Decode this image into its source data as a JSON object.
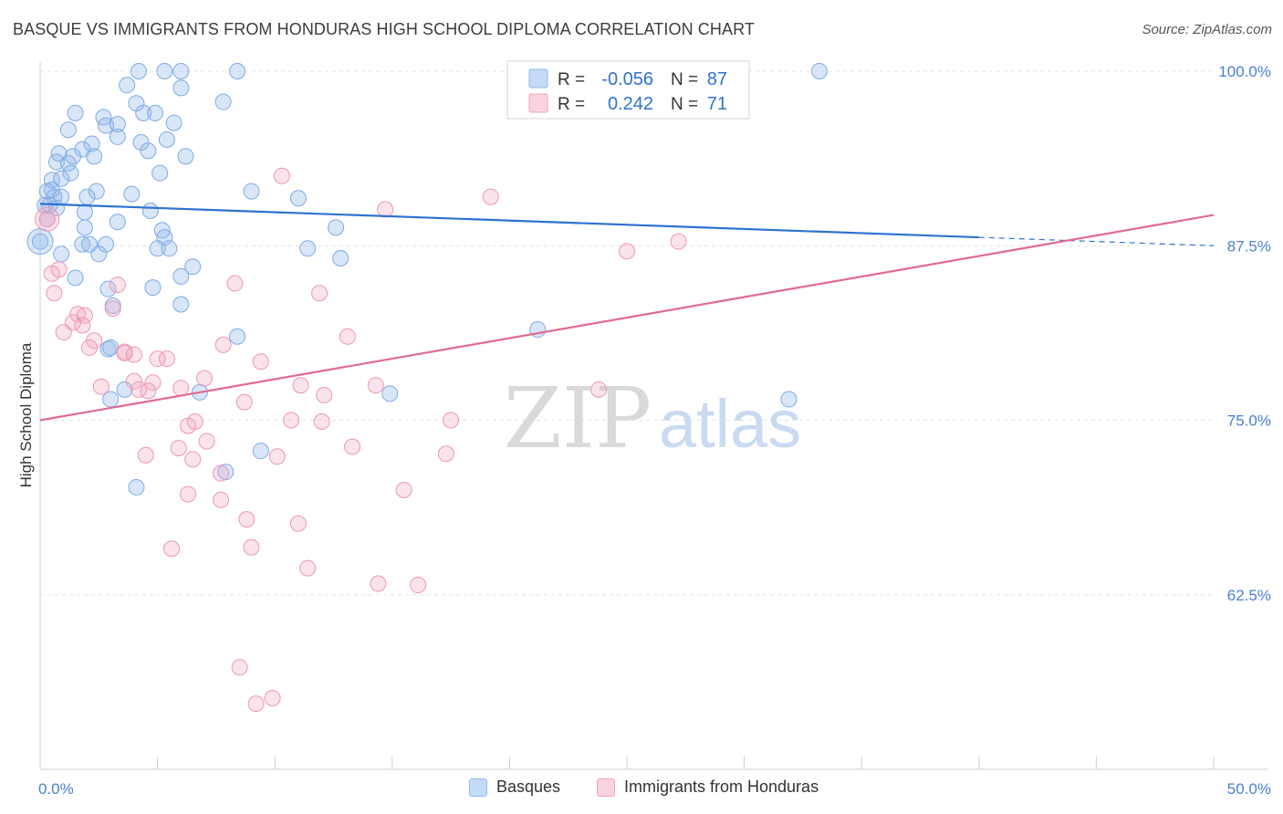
{
  "title": "BASQUE VS IMMIGRANTS FROM HONDURAS HIGH SCHOOL DIPLOMA CORRELATION CHART",
  "source": "Source: ZipAtlas.com",
  "watermark": {
    "part1": "ZIP",
    "part2": "atlas"
  },
  "colors": {
    "blue": "#8fb8ec",
    "blue_line": "#2f72d0",
    "pink": "#f2a3bd",
    "pink_line": "#e26a93",
    "axis_text": "#4a7fd1",
    "grid": "#e3e3e3"
  },
  "stats_box": {
    "rows": [
      {
        "r_label": "R =",
        "r_value": "-0.056",
        "n_label": "N =",
        "n_value": "87"
      },
      {
        "r_label": "R =",
        "r_value": "0.242",
        "n_label": "N =",
        "n_value": "71"
      }
    ]
  },
  "legend": [
    {
      "label": "Basques",
      "color": "#8fb8ec"
    },
    {
      "label": "Immigrants from Honduras",
      "color": "#f2a3bd"
    }
  ],
  "chart_data": {
    "type": "scatter",
    "ylabel": "High School Diploma",
    "xlim": [
      0,
      50
    ],
    "ylim": [
      50,
      100
    ],
    "x_tick_labels": [
      "0.0%",
      "50.0%"
    ],
    "y_ticks": [
      62.5,
      75.0,
      87.5,
      100.0
    ],
    "y_tick_labels": [
      "62.5%",
      "75.0%",
      "87.5%",
      "100.0%"
    ],
    "grid": true,
    "legend_placement": "bottom",
    "series": [
      {
        "name": "Basques",
        "trend": {
          "x0": 0,
          "y0": 90.5,
          "x1": 40,
          "y1": 88.1,
          "dash_to_x": 50,
          "dash_to_y": 87.5
        },
        "points": [
          [
            4.2,
            100
          ],
          [
            5.3,
            100
          ],
          [
            6.0,
            100
          ],
          [
            8.4,
            100
          ],
          [
            23.0,
            100
          ],
          [
            33.2,
            100
          ],
          [
            3.7,
            99
          ],
          [
            6.0,
            98.8
          ],
          [
            4.1,
            97.7
          ],
          [
            7.8,
            97.8
          ],
          [
            1.5,
            97
          ],
          [
            4.4,
            97
          ],
          [
            4.9,
            97
          ],
          [
            2.7,
            96.7
          ],
          [
            5.7,
            96.3
          ],
          [
            2.8,
            96.1
          ],
          [
            3.3,
            96.2
          ],
          [
            1.2,
            95.8
          ],
          [
            5.4,
            95.1
          ],
          [
            3.3,
            95.3
          ],
          [
            4.3,
            94.9
          ],
          [
            2.2,
            94.8
          ],
          [
            1.8,
            94.4
          ],
          [
            0.8,
            94.1
          ],
          [
            4.6,
            94.3
          ],
          [
            2.3,
            93.9
          ],
          [
            1.4,
            93.9
          ],
          [
            6.2,
            93.9
          ],
          [
            0.7,
            93.5
          ],
          [
            1.2,
            93.4
          ],
          [
            5.1,
            92.7
          ],
          [
            1.3,
            92.7
          ],
          [
            0.5,
            92.2
          ],
          [
            0.9,
            92.3
          ],
          [
            0.5,
            91.5
          ],
          [
            0.3,
            91.4
          ],
          [
            2.4,
            91.4
          ],
          [
            3.9,
            91.2
          ],
          [
            9.0,
            91.4
          ],
          [
            11.0,
            90.9
          ],
          [
            0.6,
            91
          ],
          [
            0.9,
            91
          ],
          [
            2.0,
            91
          ],
          [
            0.2,
            90.4
          ],
          [
            0.4,
            90.4
          ],
          [
            0.7,
            90.2
          ],
          [
            4.7,
            90
          ],
          [
            1.9,
            89.9
          ],
          [
            0.3,
            89.4
          ],
          [
            3.3,
            89.2
          ],
          [
            12.6,
            88.8
          ],
          [
            5.2,
            88.6
          ],
          [
            1.9,
            88.8
          ],
          [
            5.3,
            88.1
          ],
          [
            0.0,
            87.8
          ],
          [
            1.8,
            87.6
          ],
          [
            2.1,
            87.6
          ],
          [
            2.8,
            87.6
          ],
          [
            5.0,
            87.3
          ],
          [
            5.5,
            87.3
          ],
          [
            11.4,
            87.3
          ],
          [
            0.9,
            86.9
          ],
          [
            2.5,
            86.9
          ],
          [
            12.8,
            86.6
          ],
          [
            6.5,
            86
          ],
          [
            1.5,
            85.2
          ],
          [
            6.0,
            85.3
          ],
          [
            4.8,
            84.5
          ],
          [
            2.9,
            84.4
          ],
          [
            6.0,
            83.3
          ],
          [
            3.1,
            83.2
          ],
          [
            21.2,
            81.5
          ],
          [
            8.4,
            81
          ],
          [
            2.9,
            80.1
          ],
          [
            3.0,
            80.2
          ],
          [
            3.6,
            77.2
          ],
          [
            6.8,
            77
          ],
          [
            14.9,
            76.9
          ],
          [
            3.0,
            76.5
          ],
          [
            31.9,
            76.5
          ],
          [
            9.4,
            72.8
          ],
          [
            7.9,
            71.3
          ],
          [
            4.1,
            70.2
          ]
        ]
      },
      {
        "name": "Immigrants from Honduras",
        "trend": {
          "x0": 0,
          "y0": 75.0,
          "x1": 50,
          "y1": 89.7
        },
        "points": [
          [
            28.3,
            100
          ],
          [
            27.3,
            100
          ],
          [
            10.3,
            92.5
          ],
          [
            19.2,
            91
          ],
          [
            14.7,
            90.1
          ],
          [
            0.3,
            89.4
          ],
          [
            27.2,
            87.8
          ],
          [
            25.0,
            87.1
          ],
          [
            0.8,
            85.8
          ],
          [
            0.5,
            85.5
          ],
          [
            8.3,
            84.8
          ],
          [
            3.3,
            84.7
          ],
          [
            11.9,
            84.1
          ],
          [
            0.6,
            84.1
          ],
          [
            3.1,
            83
          ],
          [
            1.6,
            82.6
          ],
          [
            1.9,
            82.5
          ],
          [
            1.4,
            82
          ],
          [
            1.8,
            81.8
          ],
          [
            1.0,
            81.3
          ],
          [
            13.1,
            81
          ],
          [
            2.3,
            80.7
          ],
          [
            7.8,
            80.4
          ],
          [
            2.1,
            80.2
          ],
          [
            3.6,
            79.9
          ],
          [
            3.6,
            79.8
          ],
          [
            4.0,
            79.7
          ],
          [
            5.0,
            79.4
          ],
          [
            5.4,
            79.4
          ],
          [
            9.4,
            79.2
          ],
          [
            7.0,
            78
          ],
          [
            4.0,
            77.8
          ],
          [
            4.8,
            77.7
          ],
          [
            2.6,
            77.4
          ],
          [
            4.2,
            77.2
          ],
          [
            6.0,
            77.3
          ],
          [
            4.6,
            77.1
          ],
          [
            11.1,
            77.5
          ],
          [
            14.3,
            77.5
          ],
          [
            23.8,
            77.2
          ],
          [
            12.1,
            76.8
          ],
          [
            8.7,
            76.3
          ],
          [
            10.7,
            75
          ],
          [
            17.5,
            75
          ],
          [
            12.0,
            74.9
          ],
          [
            6.6,
            74.9
          ],
          [
            6.3,
            74.6
          ],
          [
            7.1,
            73.5
          ],
          [
            13.3,
            73.1
          ],
          [
            5.9,
            73
          ],
          [
            17.3,
            72.6
          ],
          [
            4.5,
            72.5
          ],
          [
            10.1,
            72.4
          ],
          [
            6.5,
            72.2
          ],
          [
            7.7,
            71.2
          ],
          [
            15.5,
            70
          ],
          [
            6.3,
            69.7
          ],
          [
            7.7,
            69.3
          ],
          [
            8.8,
            67.9
          ],
          [
            11.0,
            67.6
          ],
          [
            5.6,
            65.8
          ],
          [
            9.0,
            65.9
          ],
          [
            11.4,
            64.4
          ],
          [
            14.4,
            63.3
          ],
          [
            16.1,
            63.2
          ],
          [
            8.5,
            57.3
          ],
          [
            9.2,
            54.7
          ],
          [
            9.9,
            55.1
          ]
        ]
      }
    ]
  }
}
